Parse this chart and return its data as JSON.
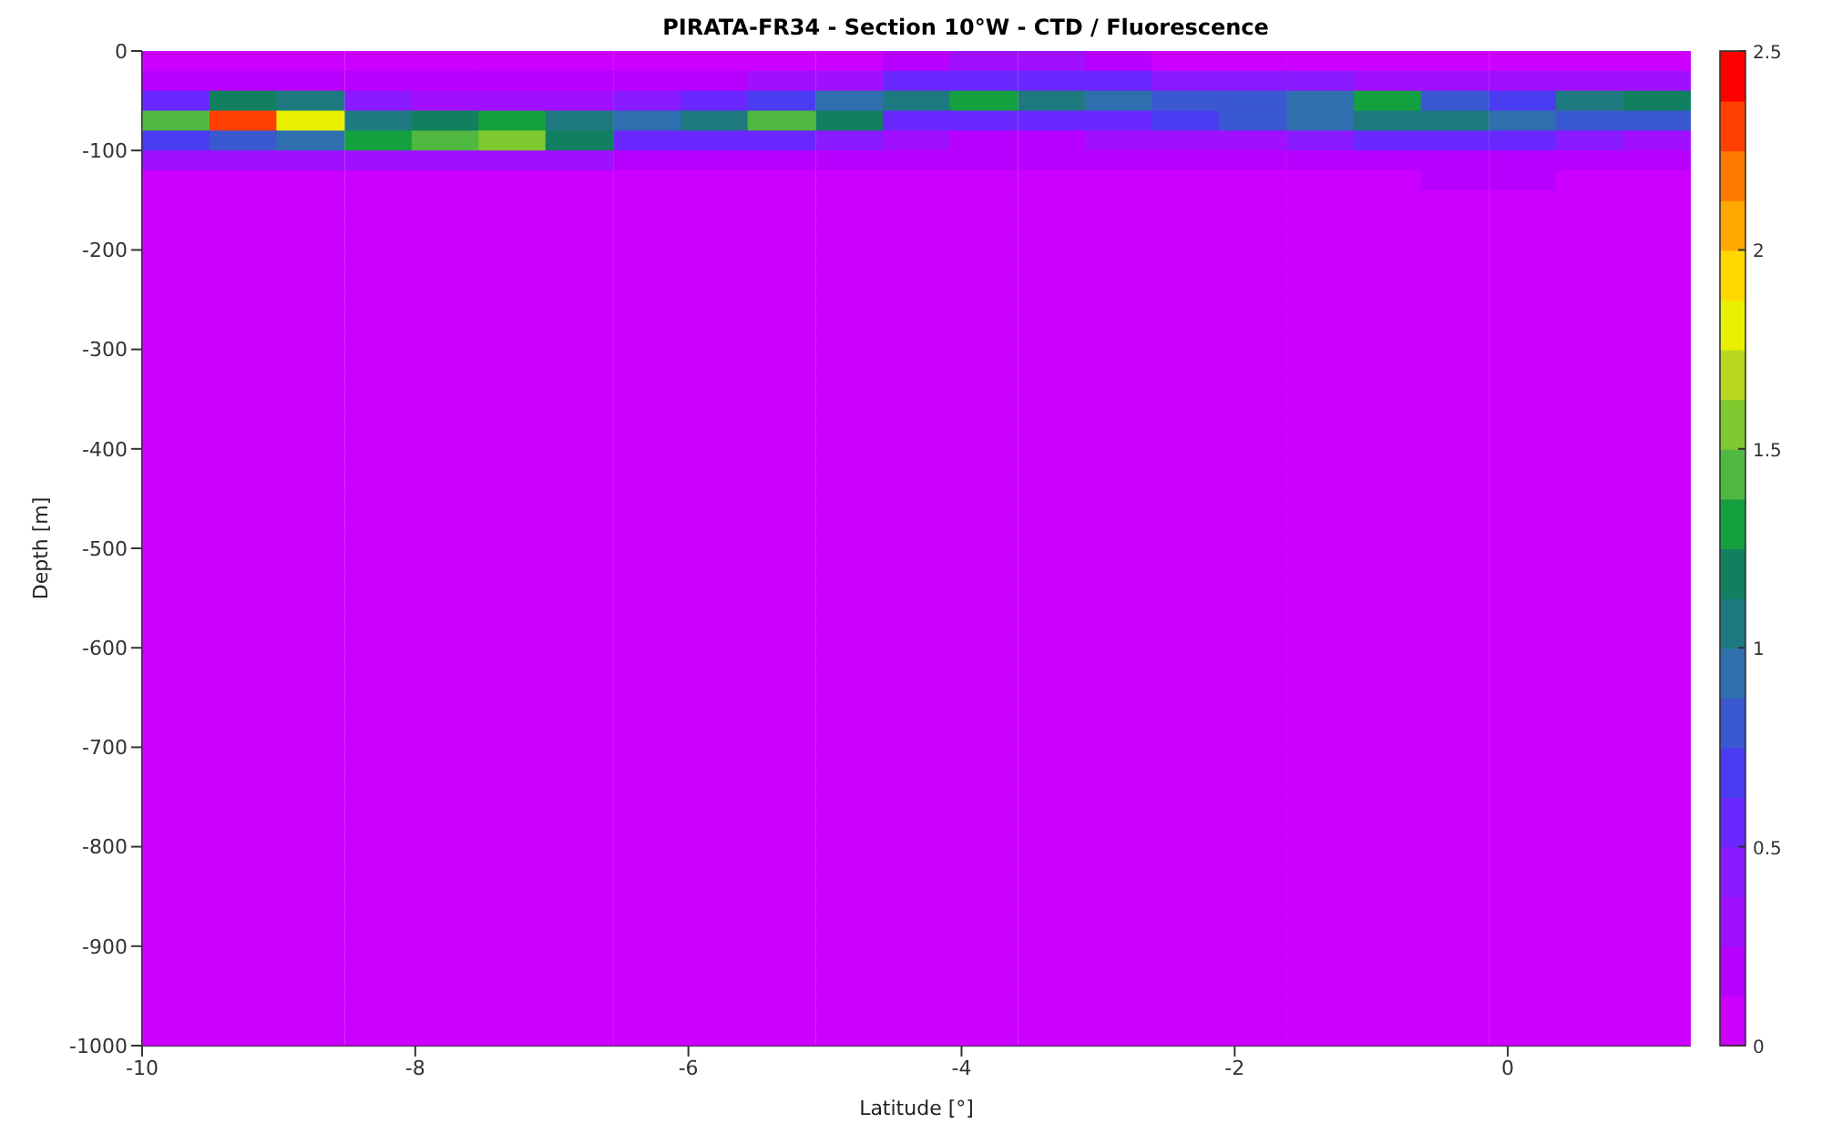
{
  "chart_data": {
    "type": "heatmap",
    "title": "PIRATA-FR34 - Section 10°W - CTD / Fluorescence",
    "xlabel": "Latitude [°]",
    "ylabel": "Depth [m]",
    "x": [
      -9.75,
      -9.26,
      -8.77,
      -8.27,
      -7.78,
      -7.29,
      -6.8,
      -6.3,
      -5.81,
      -5.32,
      -4.82,
      -4.33,
      -3.84,
      -3.34,
      -2.85,
      -2.36,
      -1.87,
      -1.37,
      -0.88,
      -0.39,
      0.11,
      0.6,
      1.09
    ],
    "y": [
      -10,
      -30,
      -50,
      -70,
      -90,
      -110,
      -130,
      -150,
      -170,
      -190,
      -210,
      -230,
      -250,
      -270,
      -290,
      -310,
      -330,
      -350,
      -370,
      -390,
      -410,
      -430,
      -450,
      -470,
      -490,
      -510,
      -530,
      -550,
      -570,
      -590,
      -610,
      -630,
      -650,
      -670,
      -690,
      -710,
      -730,
      -750,
      -770,
      -790,
      -810,
      -830,
      -850,
      -870,
      -890,
      -910,
      -930,
      -950,
      -970,
      -990
    ],
    "xlim": [
      -10,
      1.34
    ],
    "xticks": [
      -10,
      -8,
      -6,
      -4,
      -2,
      0
    ],
    "ylim": [
      -1000,
      0
    ],
    "yticks": [
      -1000,
      -900,
      -800,
      -700,
      -600,
      -500,
      -400,
      -300,
      -200,
      -100,
      0
    ],
    "clim": [
      0,
      2.5
    ],
    "cticks": [
      0,
      0.5,
      1,
      1.5,
      2,
      2.5
    ],
    "cells": [
      [
        0.1,
        0.1,
        0.1,
        0.1,
        0.1,
        0.1,
        0.1,
        0.1,
        0.1,
        0.1,
        0.1,
        0.2,
        0.3,
        0.3,
        0.2,
        0.1,
        0.1,
        0.1,
        0.1,
        0.1,
        0.1,
        0.1,
        0.1
      ],
      [
        0.2,
        0.2,
        0.2,
        0.15,
        0.15,
        0.15,
        0.15,
        0.15,
        0.15,
        0.25,
        0.25,
        0.6,
        0.6,
        0.6,
        0.6,
        0.4,
        0.4,
        0.4,
        0.3,
        0.3,
        0.3,
        0.3,
        0.3
      ],
      [
        0.6,
        1.2,
        1.0,
        0.4,
        0.3,
        0.3,
        0.3,
        0.4,
        0.5,
        0.7,
        0.9,
        1.1,
        1.3,
        1.0,
        0.9,
        0.8,
        0.8,
        0.9,
        1.3,
        0.8,
        0.7,
        1.0,
        1.2
      ],
      [
        1.4,
        2.3,
        1.8,
        1.0,
        1.2,
        1.3,
        1.1,
        0.9,
        1.1,
        1.4,
        1.2,
        0.6,
        0.5,
        0.5,
        0.6,
        0.7,
        0.8,
        0.9,
        1.1,
        1.0,
        0.9,
        0.8,
        0.8
      ],
      [
        0.7,
        0.8,
        0.9,
        1.3,
        1.4,
        1.5,
        1.2,
        0.6,
        0.5,
        0.5,
        0.4,
        0.3,
        0.2,
        0.2,
        0.3,
        0.3,
        0.3,
        0.4,
        0.5,
        0.5,
        0.5,
        0.4,
        0.3
      ],
      [
        0.25,
        0.25,
        0.25,
        0.25,
        0.25,
        0.25,
        0.25,
        0.2,
        0.2,
        0.2,
        0.2,
        0.15,
        0.15,
        0.15,
        0.15,
        0.2,
        0.2,
        0.2,
        0.2,
        0.2,
        0.2,
        0.2,
        0.2
      ],
      [
        0,
        0,
        0,
        0,
        0,
        0,
        0,
        0,
        0,
        0,
        0,
        0,
        0,
        0,
        0,
        0,
        0,
        0,
        0,
        0.15,
        0.15,
        0,
        0
      ],
      [
        0,
        0,
        0,
        0,
        0,
        0,
        0,
        0,
        0,
        0,
        0,
        0,
        0,
        0,
        0,
        0,
        0,
        0,
        0,
        0,
        0,
        0,
        0
      ],
      [
        0,
        0,
        0,
        0,
        0,
        0,
        0,
        0,
        0,
        0,
        0,
        0,
        0,
        0,
        0,
        0,
        0,
        0,
        0,
        0,
        0,
        0,
        0
      ],
      [
        0,
        0,
        0,
        0,
        0,
        0,
        0,
        0,
        0,
        0,
        0,
        0,
        0,
        0,
        0,
        0,
        0,
        0,
        0,
        0,
        0,
        0,
        0
      ],
      [
        0,
        0,
        0,
        0,
        0,
        0,
        0,
        0,
        0,
        0,
        0,
        0,
        0,
        0,
        0,
        0,
        0,
        0,
        0,
        0,
        0,
        0,
        0
      ],
      [
        0,
        0,
        0,
        0,
        0,
        0,
        0,
        0,
        0,
        0,
        0,
        0,
        0,
        0,
        0,
        0,
        0,
        0,
        0,
        0,
        0,
        0,
        0
      ],
      [
        0,
        0,
        0,
        0,
        0,
        0,
        0,
        0,
        0,
        0,
        0,
        0,
        0,
        0,
        0,
        0,
        0,
        0,
        0,
        0,
        0,
        0,
        0
      ],
      [
        0,
        0,
        0,
        0,
        0,
        0,
        0,
        0,
        0,
        0,
        0,
        0,
        0,
        0,
        0,
        0,
        0,
        0,
        0,
        0,
        0,
        0,
        0
      ],
      [
        0,
        0,
        0,
        0,
        0,
        0,
        0,
        0,
        0,
        0,
        0,
        0,
        0,
        0,
        0,
        0,
        0,
        0,
        0,
        0,
        0,
        0,
        0
      ],
      [
        0,
        0,
        0,
        0,
        0,
        0,
        0,
        0,
        0,
        0,
        0,
        0,
        0,
        0,
        0,
        0,
        0,
        0,
        0,
        0,
        0,
        0,
        0
      ],
      [
        0,
        0,
        0,
        0,
        0,
        0,
        0,
        0,
        0,
        0,
        0,
        0,
        0,
        0,
        0,
        0,
        0,
        0,
        0,
        0,
        0,
        0,
        0
      ],
      [
        0,
        0,
        0,
        0,
        0,
        0,
        0,
        0,
        0,
        0,
        0,
        0,
        0,
        0,
        0,
        0,
        0,
        0,
        0,
        0,
        0,
        0,
        0
      ],
      [
        0,
        0,
        0,
        0,
        0,
        0,
        0,
        0,
        0,
        0,
        0,
        0,
        0,
        0,
        0,
        0,
        0,
        0,
        0,
        0,
        0,
        0,
        0
      ],
      [
        0,
        0,
        0,
        0,
        0,
        0,
        0,
        0,
        0,
        0,
        0,
        0,
        0,
        0,
        0,
        0,
        0,
        0,
        0,
        0,
        0,
        0,
        0
      ],
      [
        0,
        0,
        0,
        0,
        0,
        0,
        0,
        0,
        0,
        0,
        0,
        0,
        0,
        0,
        0,
        0,
        0,
        0,
        0,
        0,
        0,
        0,
        0
      ],
      [
        0,
        0,
        0,
        0,
        0,
        0,
        0,
        0,
        0,
        0,
        0,
        0,
        0,
        0,
        0,
        0,
        0,
        0,
        0,
        0,
        0,
        0,
        0
      ],
      [
        0,
        0,
        0,
        0,
        0,
        0,
        0,
        0,
        0,
        0,
        0,
        0,
        0,
        0,
        0,
        0,
        0,
        0,
        0,
        0,
        0,
        0,
        0
      ],
      [
        0,
        0,
        0,
        0,
        0,
        0,
        0,
        0,
        0,
        0,
        0,
        0,
        0,
        0,
        0,
        0,
        0,
        0,
        0,
        0,
        0,
        0,
        0
      ],
      [
        0,
        0,
        0,
        0,
        0,
        0,
        0,
        0,
        0,
        0,
        0,
        0,
        0,
        0,
        0,
        0,
        0,
        0,
        0,
        0,
        0,
        0,
        0
      ],
      [
        0,
        0,
        0,
        0,
        0,
        0,
        0,
        0,
        0,
        0,
        0,
        0,
        0,
        0,
        0,
        0,
        0,
        0,
        0,
        0,
        0,
        0,
        0
      ],
      [
        0,
        0,
        0,
        0,
        0,
        0,
        0,
        0,
        0,
        0,
        0,
        0,
        0,
        0,
        0,
        0,
        0,
        0,
        0,
        0,
        0,
        0,
        0
      ],
      [
        0,
        0,
        0,
        0,
        0,
        0,
        0,
        0,
        0,
        0,
        0,
        0,
        0,
        0,
        0,
        0,
        0,
        0,
        0,
        0,
        0,
        0,
        0
      ],
      [
        0,
        0,
        0,
        0,
        0,
        0,
        0,
        0,
        0,
        0,
        0,
        0,
        0,
        0,
        0,
        0,
        0,
        0,
        0,
        0,
        0,
        0,
        0
      ],
      [
        0,
        0,
        0,
        0,
        0,
        0,
        0,
        0,
        0,
        0,
        0,
        0,
        0,
        0,
        0,
        0,
        0,
        0,
        0,
        0,
        0,
        0,
        0
      ],
      [
        0,
        0,
        0,
        0,
        0,
        0,
        0,
        0,
        0,
        0,
        0,
        0,
        0,
        0,
        0,
        0,
        0,
        0,
        0,
        0,
        0,
        0,
        0
      ],
      [
        0,
        0,
        0,
        0,
        0,
        0,
        0,
        0,
        0,
        0,
        0,
        0,
        0,
        0,
        0,
        0,
        0,
        0,
        0,
        0,
        0,
        0,
        0
      ],
      [
        0,
        0,
        0,
        0,
        0,
        0,
        0,
        0,
        0,
        0,
        0,
        0,
        0,
        0,
        0,
        0,
        0,
        0,
        0,
        0,
        0,
        0,
        0
      ],
      [
        0,
        0,
        0,
        0,
        0,
        0,
        0,
        0,
        0,
        0,
        0,
        0,
        0,
        0,
        0,
        0,
        0,
        0,
        0,
        0,
        0,
        0,
        0
      ],
      [
        0,
        0,
        0,
        0,
        0,
        0,
        0,
        0,
        0,
        0,
        0,
        0,
        0,
        0,
        0,
        0,
        0,
        0,
        0,
        0,
        0,
        0,
        0
      ],
      [
        0,
        0,
        0,
        0,
        0,
        0,
        0,
        0,
        0,
        0,
        0,
        0,
        0,
        0,
        0,
        0,
        0,
        0,
        0,
        0,
        0,
        0,
        0
      ],
      [
        0,
        0,
        0,
        0,
        0,
        0,
        0,
        0,
        0,
        0,
        0,
        0,
        0,
        0,
        0,
        0,
        0,
        0,
        0,
        0,
        0,
        0,
        0
      ],
      [
        0,
        0,
        0,
        0,
        0,
        0,
        0,
        0,
        0,
        0,
        0,
        0,
        0,
        0,
        0,
        0,
        0,
        0,
        0,
        0,
        0,
        0,
        0
      ],
      [
        0,
        0,
        0,
        0,
        0,
        0,
        0,
        0,
        0,
        0,
        0,
        0,
        0,
        0,
        0,
        0,
        0,
        0,
        0,
        0,
        0,
        0,
        0
      ],
      [
        0,
        0,
        0,
        0,
        0,
        0,
        0,
        0,
        0,
        0,
        0,
        0,
        0,
        0,
        0,
        0,
        0,
        0,
        0,
        0,
        0,
        0,
        0
      ],
      [
        0,
        0,
        0,
        0,
        0,
        0,
        0,
        0,
        0,
        0,
        0,
        0,
        0,
        0,
        0,
        0,
        0,
        0,
        0,
        0,
        0,
        0,
        0
      ],
      [
        0,
        0,
        0,
        0,
        0,
        0,
        0,
        0,
        0,
        0,
        0,
        0,
        0,
        0,
        0,
        0,
        0,
        0,
        0,
        0,
        0,
        0,
        0
      ],
      [
        0,
        0,
        0,
        0,
        0,
        0,
        0,
        0,
        0,
        0,
        0,
        0,
        0,
        0,
        0,
        0,
        0,
        0,
        0,
        0,
        0,
        0,
        0
      ],
      [
        0,
        0,
        0,
        0,
        0,
        0,
        0,
        0,
        0,
        0,
        0,
        0,
        0,
        0,
        0,
        0,
        0,
        0,
        0,
        0,
        0,
        0,
        0
      ],
      [
        0,
        0,
        0,
        0,
        0,
        0,
        0,
        0,
        0,
        0,
        0,
        0,
        0,
        0,
        0,
        0,
        0,
        0,
        0,
        0,
        0,
        0,
        0
      ],
      [
        0,
        0,
        0,
        0,
        0,
        0,
        0,
        0,
        0,
        0,
        0,
        0,
        0,
        0,
        0,
        0,
        0,
        0,
        0,
        0,
        0,
        0,
        0
      ],
      [
        0,
        0,
        0,
        0,
        0,
        0,
        0,
        0,
        0,
        0,
        0,
        0,
        0,
        0,
        0,
        0,
        0,
        0,
        0,
        0,
        0,
        0,
        0
      ],
      [
        0,
        0,
        0,
        0,
        0,
        0,
        0,
        0,
        0,
        0,
        0,
        0,
        0,
        0,
        0,
        0,
        0,
        0,
        0,
        0,
        0,
        0,
        0
      ],
      [
        0,
        0,
        0,
        0,
        0,
        0,
        0,
        0,
        0,
        0,
        0,
        0,
        0,
        0,
        0,
        0,
        0,
        0,
        0,
        0,
        0,
        0,
        0
      ],
      [
        0,
        0,
        0,
        0,
        0,
        0,
        0,
        0,
        0,
        0,
        0,
        0,
        0,
        0,
        0,
        0,
        0,
        0,
        0,
        0,
        0,
        0,
        0
      ]
    ]
  }
}
